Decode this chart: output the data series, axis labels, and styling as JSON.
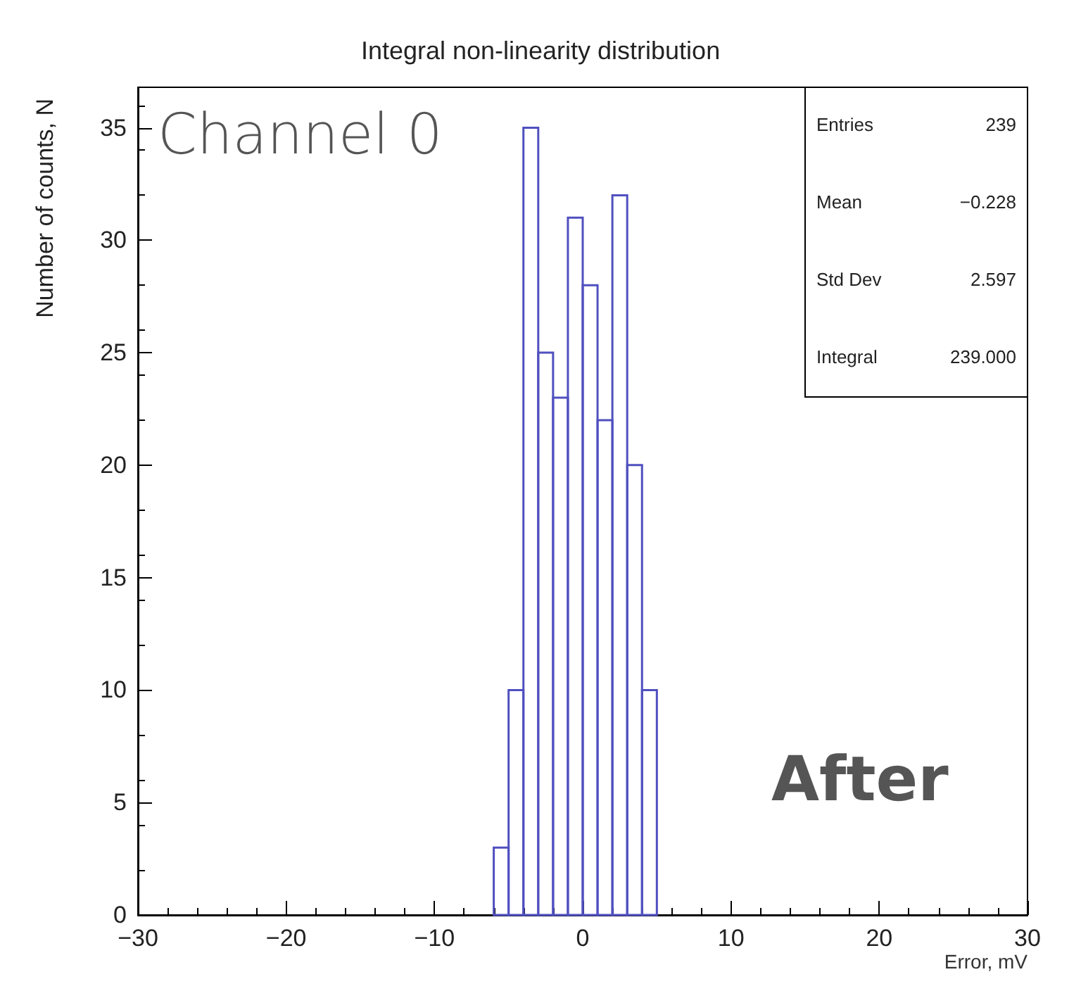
{
  "chart_data": {
    "type": "histogram",
    "title": "Integral non-linearity distribution",
    "xlabel": "Error, mV",
    "ylabel": "Number of counts, N",
    "bins": [
      -6,
      -5,
      -4,
      -3,
      -2,
      -1,
      0,
      1,
      2,
      3,
      4,
      5
    ],
    "values": [
      3,
      10,
      35,
      25,
      23,
      31,
      28,
      22,
      32,
      20,
      10
    ],
    "color": "#5050c0",
    "xlim": [
      -30,
      30
    ],
    "xticks": [
      -30,
      -20,
      -10,
      0,
      10,
      20,
      30
    ],
    "ylim": [
      0,
      36.8
    ],
    "yticks": [
      0,
      5,
      10,
      15,
      20,
      25,
      30,
      35
    ],
    "grid": false,
    "annotations": [
      "Channel 0",
      "After",
      "Entries 239",
      "Mean −0.228",
      "Std Dev 2.597",
      "Integral 239.000"
    ]
  }
}
